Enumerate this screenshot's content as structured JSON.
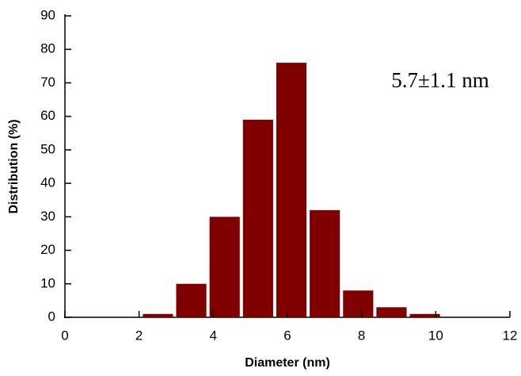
{
  "chart_data": {
    "type": "histogram",
    "x_label": "Diameter (nm)",
    "y_label": "Distribution (%)",
    "annotation": "5.7±1.1 nm",
    "bins": [
      2.1,
      3.0,
      3.9,
      4.8,
      5.7,
      6.6,
      7.5,
      8.4,
      9.3,
      10.2
    ],
    "values": [
      1,
      10,
      30,
      59,
      76,
      32,
      8,
      3,
      1
    ],
    "color": "#800000",
    "xlim": [
      0,
      12
    ],
    "xticks": [
      0,
      2,
      4,
      6,
      8,
      10,
      12
    ],
    "ylim": [
      0,
      90
    ],
    "yticks": [
      0,
      10,
      20,
      30,
      40,
      50,
      60,
      70,
      80,
      90
    ]
  }
}
